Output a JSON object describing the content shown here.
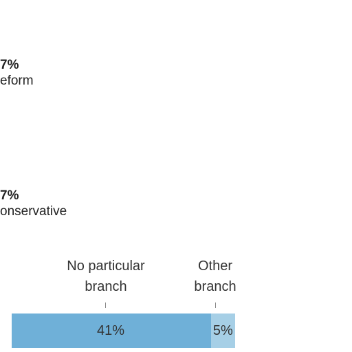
{
  "chart_data": {
    "type": "bar",
    "orientation": "horizontal-stacked",
    "stack_labels": [
      {
        "value": "7%",
        "name": "eform"
      },
      {
        "value": "7%",
        "name": "onservative"
      }
    ],
    "categories": [
      "No particular branch",
      "Other branch"
    ],
    "category_label_lines": [
      [
        "No particular",
        "branch"
      ],
      [
        "Other",
        "branch"
      ]
    ],
    "values": [
      41,
      5
    ],
    "value_labels": [
      "41%",
      "5%"
    ],
    "colors": [
      "#6fb0d8",
      "#a6cfe6"
    ]
  }
}
